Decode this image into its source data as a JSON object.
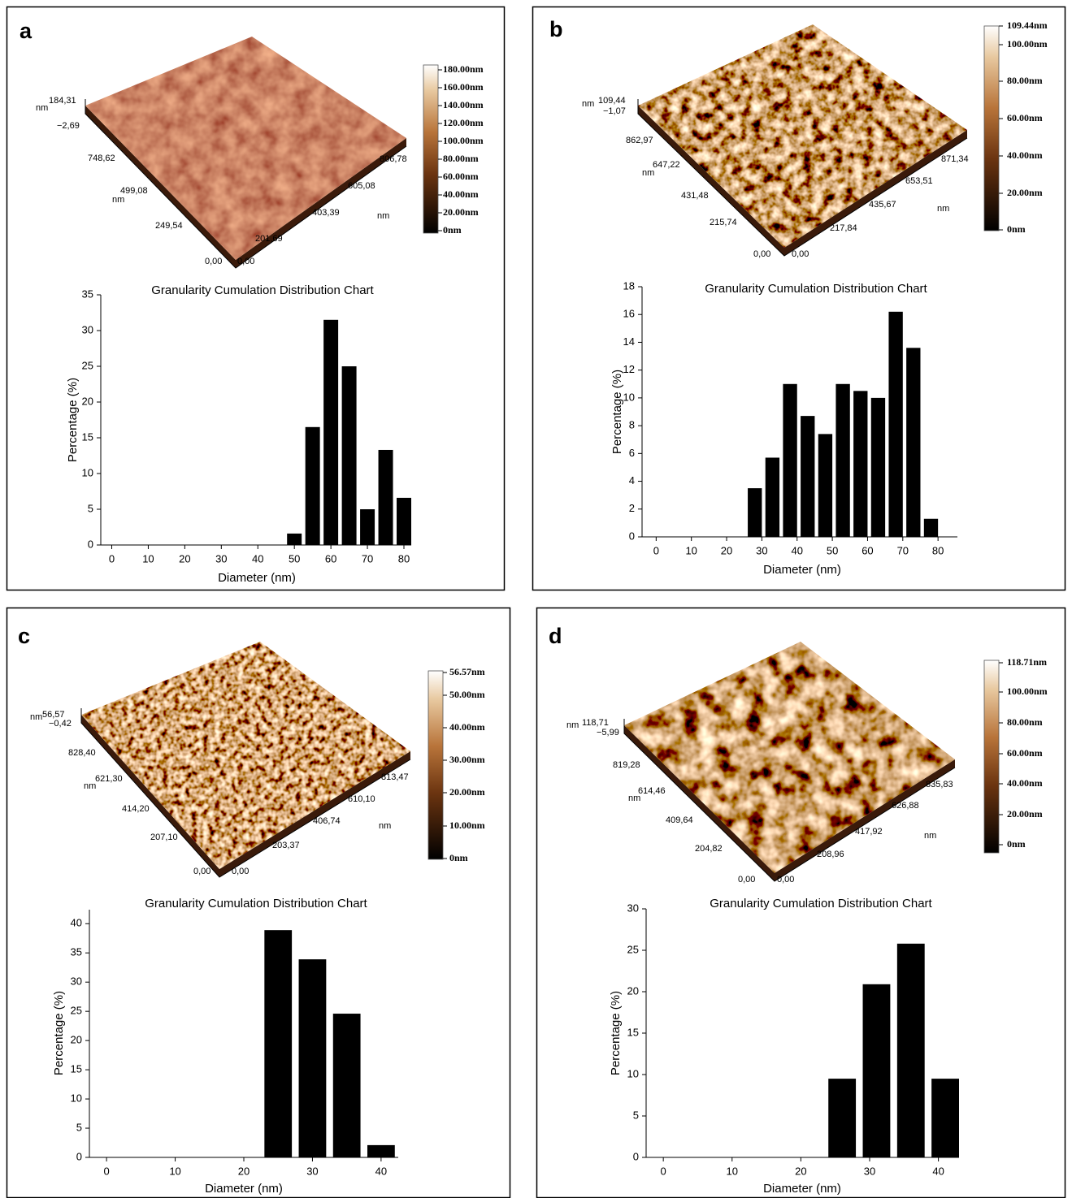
{
  "panels": [
    {
      "label": "a",
      "afm": {
        "axis_labels": [
          "nm",
          "184,31",
          "−2,69",
          "748,62",
          "499,08",
          "nm",
          "249,54",
          "0,00",
          "0,00",
          "201,69",
          "403,39",
          "605,08",
          "806,78",
          "nm"
        ],
        "colorbar": [
          "180.00nm",
          "160.00nm",
          "140.00nm",
          "120.00nm",
          "100.00nm",
          "80.00nm",
          "60.00nm",
          "40.00nm",
          "20.00nm",
          "0nm"
        ]
      }
    },
    {
      "label": "b",
      "afm": {
        "axis_labels": [
          "nm",
          "109,44",
          "−1,07",
          "862,97",
          "nm",
          "647,22",
          "431,48",
          "215,74",
          "0,00",
          "0,00",
          "217,84",
          "435,67",
          "653,51",
          "871,34",
          "nm"
        ],
        "colorbar": [
          "109.44nm",
          "100.00nm",
          "80.00nm",
          "60.00nm",
          "40.00nm",
          "20.00nm",
          "0nm"
        ]
      }
    },
    {
      "label": "c",
      "afm": {
        "axis_labels": [
          "nm",
          "56,57",
          "−0,42",
          "828,40",
          "621,30",
          "nm",
          "414,20",
          "207,10",
          "0,00",
          "0,00",
          "203,37",
          "406,74",
          "610,10",
          "813,47",
          "nm"
        ],
        "colorbar": [
          "56.57nm",
          "50.00nm",
          "40.00nm",
          "30.00nm",
          "20.00nm",
          "10.00nm",
          "0nm"
        ]
      }
    },
    {
      "label": "d",
      "afm": {
        "axis_labels": [
          "nm",
          "118,71",
          "−5,99",
          "819,28",
          "614,46",
          "nm",
          "409,64",
          "204,82",
          "0,00",
          "0,00",
          "208,96",
          "417,92",
          "626,88",
          "835,83",
          "nm"
        ],
        "colorbar": [
          "118.71nm",
          "100.00nm",
          "80.00nm",
          "60.00nm",
          "40.00nm",
          "20.00nm",
          "0nm"
        ]
      }
    }
  ],
  "chart_data": [
    {
      "type": "bar",
      "title": "Granularity Cumulation Distribution Chart",
      "xlabel": "Diameter (nm)",
      "ylabel": "Percentage (%)",
      "color": "#000000",
      "x": [
        50,
        55,
        60,
        65,
        70,
        75,
        80
      ],
      "values": [
        1.6,
        16.5,
        31.5,
        25,
        5,
        13.3,
        6.6
      ],
      "xlim": [
        -3,
        82
      ],
      "xticks": [
        0,
        10,
        20,
        30,
        40,
        50,
        60,
        70,
        80
      ],
      "ylim": [
        0,
        35
      ],
      "yticks": [
        0,
        5,
        10,
        15,
        20,
        25,
        30,
        35
      ]
    },
    {
      "type": "bar",
      "title": "Granularity Cumulation Distribution Chart",
      "xlabel": "Diameter (nm)",
      "ylabel": "Percentage (%)",
      "color": "#000000",
      "x": [
        28,
        33,
        38,
        43,
        48,
        53,
        58,
        63,
        68,
        73,
        78
      ],
      "values": [
        3.5,
        5.7,
        11,
        8.7,
        7.4,
        11,
        10.5,
        10,
        16.2,
        13.6,
        1.3
      ],
      "xlim": [
        -4,
        85.5
      ],
      "xticks": [
        0,
        10,
        20,
        30,
        40,
        50,
        60,
        70,
        80
      ],
      "ylim": [
        0,
        18
      ],
      "yticks": [
        0,
        2,
        4,
        6,
        8,
        10,
        12,
        14,
        16,
        18
      ]
    },
    {
      "type": "bar",
      "title": "Granularity Cumulation Distribution Chart",
      "xlabel": "Diameter (nm)",
      "ylabel": "Percentage (%)",
      "color": "#000000",
      "x": [
        25,
        30,
        35,
        40
      ],
      "values": [
        38.9,
        33.9,
        24.6,
        2.1
      ],
      "xlim": [
        -2.5,
        42.5
      ],
      "xticks": [
        0,
        10,
        20,
        30,
        40
      ],
      "ylim": [
        0,
        42.4
      ],
      "yticks": [
        0,
        5,
        10,
        15,
        20,
        25,
        30,
        35,
        40
      ]
    },
    {
      "type": "bar",
      "title": "Granularity Cumulation Distribution Chart",
      "xlabel": "Diameter (nm)",
      "ylabel": "Percentage (%)",
      "color": "#000000",
      "x": [
        26,
        31,
        36,
        41
      ],
      "values": [
        9.5,
        20.9,
        25.8,
        9.5
      ],
      "xlim": [
        -2.5,
        43
      ],
      "xticks": [
        0,
        10,
        20,
        30,
        40
      ],
      "ylim": [
        0,
        30
      ],
      "yticks": [
        0,
        5,
        10,
        15,
        20,
        25,
        30
      ]
    }
  ]
}
